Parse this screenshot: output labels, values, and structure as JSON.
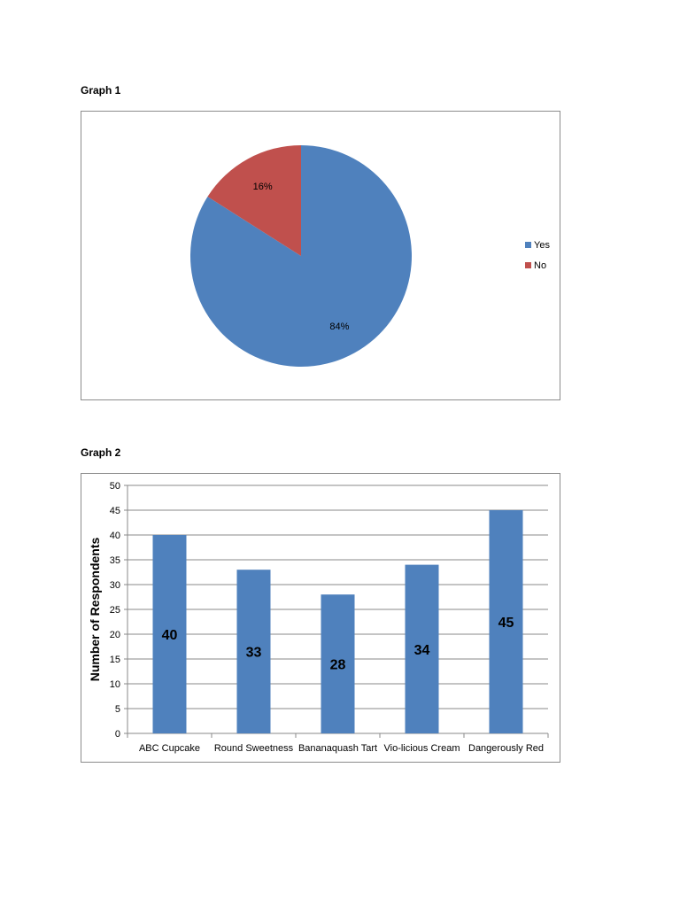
{
  "graph1_title": "Graph 1",
  "graph2_title": "Graph 2",
  "chart_data": [
    {
      "type": "pie",
      "title": "",
      "slices": [
        {
          "label": "Yes",
          "value": 84,
          "label_text": "84%",
          "color": "#4F81BD"
        },
        {
          "label": "No",
          "value": 16,
          "label_text": "16%",
          "color": "#C0504D"
        }
      ],
      "legend": {
        "placement": "right",
        "entries": [
          "Yes",
          "No"
        ]
      }
    },
    {
      "type": "bar",
      "title": "",
      "xlabel": "",
      "ylabel": "Number of Respondents",
      "categories": [
        "ABC Cupcake",
        "Round Sweetness",
        "Bananaquash Tart",
        "Vio-licious Cream",
        "Dangerously Red"
      ],
      "values": [
        40,
        33,
        28,
        34,
        45
      ],
      "ylim": [
        0,
        50
      ],
      "yticks": [
        0,
        5,
        10,
        15,
        20,
        25,
        30,
        35,
        40,
        45,
        50
      ],
      "grid": true,
      "color": "#4F81BD"
    }
  ]
}
